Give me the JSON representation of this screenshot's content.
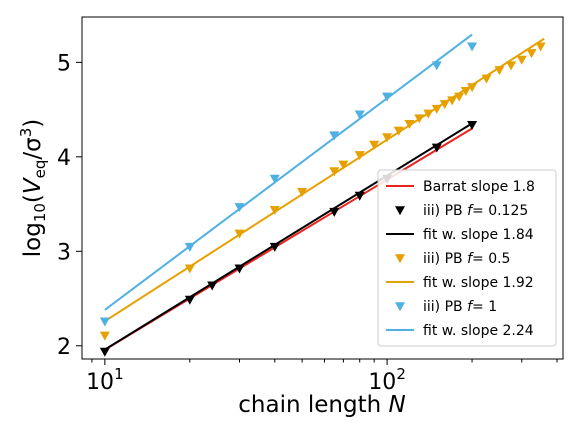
{
  "chart_data": {
    "type": "scatter",
    "xscale": "log",
    "xlim": [
      8.3,
      420
    ],
    "ylim": [
      1.86,
      5.48
    ],
    "xlabel_main": "chain length ",
    "xlabel_var": "N",
    "ylabel_prefix": "log",
    "ylabel_sub": "10",
    "ylabel_open": "(",
    "ylabel_V": "V",
    "ylabel_Vsub": "eq",
    "ylabel_slash": "/σ",
    "ylabel_sup": "3",
    "ylabel_close": ")",
    "x_ticks": [
      {
        "value": 10,
        "base": "10",
        "exp": "1"
      },
      {
        "value": 100,
        "base": "10",
        "exp": "2"
      }
    ],
    "y_ticks": [
      {
        "value": 2,
        "label": "2"
      },
      {
        "value": 3,
        "label": "3"
      },
      {
        "value": 4,
        "label": "4"
      },
      {
        "value": 5,
        "label": "5"
      }
    ],
    "grid": false,
    "legend_position": "lower-right",
    "series": [
      {
        "id": "barrat",
        "kind": "line",
        "color": "#e8241e",
        "x": [
          10,
          200
        ],
        "y": [
          1.958,
          4.3
        ],
        "legend": {
          "prefix": "Barrat slope 1.8"
        }
      },
      {
        "id": "pb0125",
        "kind": "marker",
        "color": "#000000",
        "x": [
          10,
          20,
          24,
          30,
          40,
          65,
          80,
          100,
          150,
          200
        ],
        "y": [
          1.94,
          2.49,
          2.64,
          2.82,
          3.05,
          3.42,
          3.59,
          3.77,
          4.1,
          4.34
        ],
        "legend": {
          "prefix": "iii) PB ",
          "var": "f",
          "suffix": "= 0.125"
        }
      },
      {
        "id": "fit184",
        "kind": "line",
        "color": "#000000",
        "x": [
          10,
          200
        ],
        "y": [
          1.96,
          4.354
        ],
        "legend": {
          "prefix": "fit w. slope 1.84"
        }
      },
      {
        "id": "pb05",
        "kind": "marker",
        "color": "#e6a100",
        "x": [
          10,
          20,
          30,
          40,
          50,
          65,
          70,
          80,
          90,
          100,
          110,
          120,
          130,
          140,
          150,
          160,
          170,
          180,
          190,
          200,
          225,
          250,
          275,
          300,
          325,
          350
        ],
        "y": [
          2.11,
          2.82,
          3.19,
          3.44,
          3.63,
          3.85,
          3.92,
          4.02,
          4.13,
          4.21,
          4.28,
          4.35,
          4.41,
          4.46,
          4.51,
          4.56,
          4.6,
          4.64,
          4.7,
          4.74,
          4.83,
          4.92,
          4.97,
          5.03,
          5.1,
          5.17
        ],
        "legend": {
          "prefix": "iii) PB ",
          "var": "f",
          "suffix": "= 0.5"
        }
      },
      {
        "id": "fit192",
        "kind": "line",
        "color": "#e6a100",
        "x": [
          10,
          360
        ],
        "y": [
          2.26,
          5.25
        ],
        "legend": {
          "prefix": "fit w. slope 1.92"
        }
      },
      {
        "id": "pb1",
        "kind": "marker",
        "color": "#4fb0e3",
        "x": [
          10,
          20,
          30,
          40,
          65,
          80,
          100,
          150,
          200
        ],
        "y": [
          2.26,
          3.05,
          3.47,
          3.77,
          4.23,
          4.45,
          4.64,
          4.97,
          5.17
        ],
        "legend": {
          "prefix": "iii) PB ",
          "var": "f",
          "suffix": "= 1"
        }
      },
      {
        "id": "fit224",
        "kind": "line",
        "color": "#4fb0e3",
        "x": [
          10,
          200
        ],
        "y": [
          2.38,
          5.294
        ],
        "legend": {
          "prefix": "fit w. slope 2.24"
        }
      }
    ]
  }
}
